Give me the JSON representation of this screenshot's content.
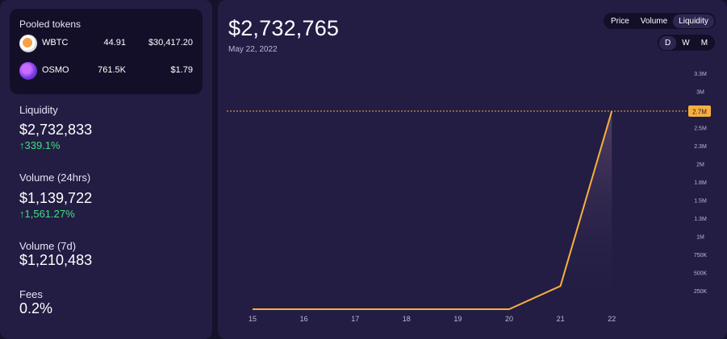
{
  "pooled_tokens": {
    "title": "Pooled tokens",
    "tokens": [
      {
        "symbol": "WBTC",
        "amount": "44.91",
        "value": "$30,417.20",
        "icon": "wbtc-token-icon"
      },
      {
        "symbol": "OSMO",
        "amount": "761.5K",
        "value": "$1.79",
        "icon": "osmo-token-icon"
      }
    ]
  },
  "stats": {
    "liquidity": {
      "label": "Liquidity",
      "value": "$2,732,833",
      "change": "↑339.1%"
    },
    "volume_24h": {
      "label": "Volume (24hrs)",
      "value": "$1,139,722",
      "change": "↑1,561.27%"
    },
    "volume_7d": {
      "label": "Volume (7d)",
      "value": "$1,210,483"
    },
    "fees": {
      "label": "Fees",
      "value": "0.2%"
    }
  },
  "header": {
    "value": "$2,732,765",
    "date": "May 22, 2022"
  },
  "metric_tabs": {
    "options": [
      "Price",
      "Volume",
      "Liquidity"
    ],
    "selected": "Liquidity"
  },
  "range_tabs": {
    "options": [
      "D",
      "W",
      "M"
    ],
    "selected": "D"
  },
  "colors": {
    "line": "#f7b03c",
    "positive": "#3fe07d",
    "panel": "#231d44",
    "dark": "#140f29"
  },
  "chart_data": {
    "type": "area",
    "x": [
      "15",
      "16",
      "17",
      "18",
      "19",
      "20",
      "21",
      "22"
    ],
    "values": [
      0,
      0,
      0,
      0,
      0,
      0,
      320000,
      2732765
    ],
    "y_ticks": [
      "250K",
      "500K",
      "750K",
      "1M",
      "1.3M",
      "1.5M",
      "1.8M",
      "2M",
      "2.3M",
      "2.5M",
      "3M",
      "3.3M"
    ],
    "y_tick_values": [
      250000,
      500000,
      750000,
      1000000,
      1250000,
      1500000,
      1750000,
      2000000,
      2250000,
      2500000,
      3000000,
      3250000
    ],
    "current_label": "2.7M",
    "ylim": [
      0,
      3300000
    ]
  }
}
